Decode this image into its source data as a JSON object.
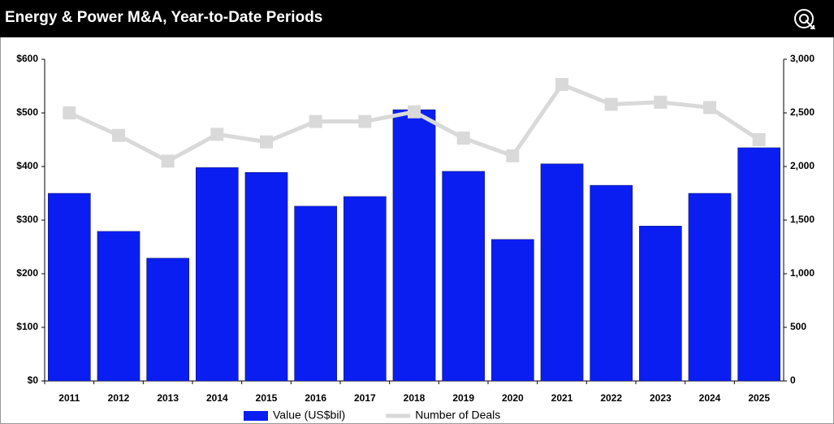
{
  "chart_data": {
    "type": "combo",
    "title": "Energy & Power M&A, Year-to-Date Periods",
    "categories": [
      "2011",
      "2012",
      "2013",
      "2014",
      "2015",
      "2016",
      "2017",
      "2018",
      "2019",
      "2020",
      "2021",
      "2022",
      "2023",
      "2024",
      "2025"
    ],
    "series": [
      {
        "name": "Value (US$bil)",
        "type": "bar",
        "color": "#0a1ef2",
        "axis": "y",
        "values": [
          350,
          279,
          229,
          398,
          389,
          326,
          344,
          506,
          391,
          264,
          405,
          365,
          289,
          350,
          435
        ]
      },
      {
        "name": "Number of Deals",
        "type": "line",
        "color": "#d9d9d9",
        "axis": "y2",
        "values": [
          2500,
          2290,
          2050,
          2300,
          2230,
          2420,
          2420,
          2510,
          2265,
          2100,
          2765,
          2580,
          2600,
          2550,
          2250
        ]
      }
    ],
    "ylim": [
      0,
      600
    ],
    "yticks": [
      {
        "value": 0,
        "label": "$0"
      },
      {
        "value": 100,
        "label": "$100"
      },
      {
        "value": 200,
        "label": "$200"
      },
      {
        "value": 300,
        "label": "$300"
      },
      {
        "value": 400,
        "label": "$400"
      },
      {
        "value": 500,
        "label": "$500"
      },
      {
        "value": 600,
        "label": "$600"
      }
    ],
    "y2lim": [
      0,
      3000
    ],
    "y2ticks": [
      0,
      500,
      {
        "value": 1000,
        "label": "1,000"
      },
      {
        "value": 1500,
        "label": "1,500"
      },
      {
        "value": 2000,
        "label": "2,000"
      },
      {
        "value": 2500,
        "label": "2,500"
      },
      {
        "value": 3000,
        "label": "3,000"
      }
    ],
    "grid": false,
    "legend": "bottom"
  }
}
